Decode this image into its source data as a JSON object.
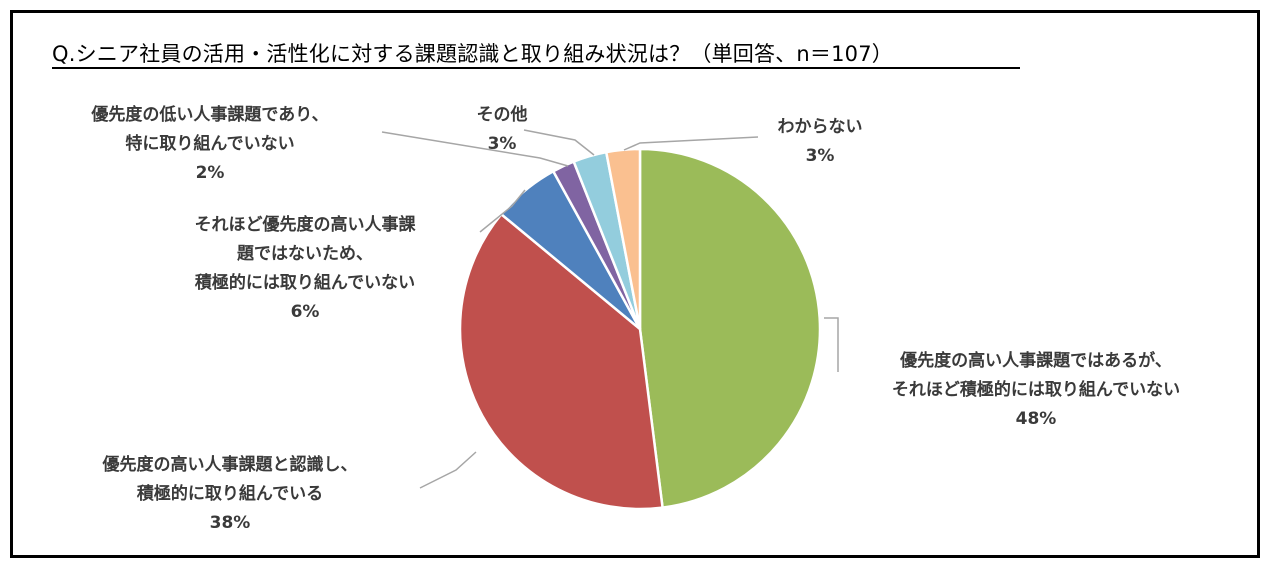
{
  "title": "Q.シニア社員の活用・活性化に対する課題認識と取り組み状況は？（単回答、n＝107）",
  "chart_data": {
    "type": "pie",
    "title": "Q.シニア社員の活用・活性化に対する課題認識と取り組み状況は？（単回答、n＝107）",
    "slices": [
      {
        "label": [
          "優先度の高い人事課題ではあるが、",
          "それほど積極的には取り組んでいない"
        ],
        "value": 48,
        "value_label": "48%",
        "color": "#9BBB59"
      },
      {
        "label": [
          "優先度の高い人事課題と認識し、",
          "積極的に取り組んでいる"
        ],
        "value": 38,
        "value_label": "38%",
        "color": "#C0504D"
      },
      {
        "label": [
          "それほど優先度の高い人事課",
          "題ではないため、",
          "積極的には取り組んでいない"
        ],
        "value": 6,
        "value_label": "6%",
        "color": "#4F81BD"
      },
      {
        "label": [
          "優先度の低い人事課題であり、",
          "特に取り組んでいない"
        ],
        "value": 2,
        "value_label": "2%",
        "color": "#8064A2"
      },
      {
        "label": [
          "その他"
        ],
        "value": 3,
        "value_label": "3%",
        "color": "#93CDDD"
      },
      {
        "label": [
          "わからない"
        ],
        "value": 3,
        "value_label": "3%",
        "color": "#FAC090"
      }
    ],
    "start": "12 o'clock",
    "direction": "clockwise",
    "legend": "none"
  }
}
